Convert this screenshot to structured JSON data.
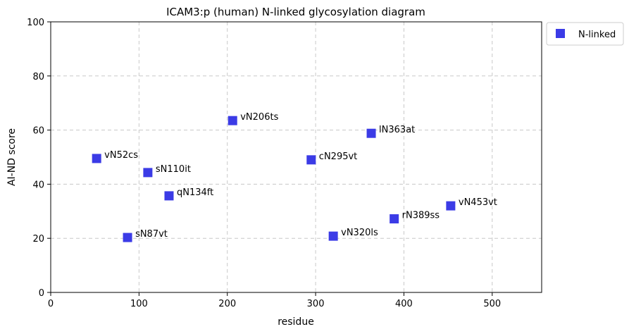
{
  "chart_data": {
    "type": "scatter",
    "title": "ICAM3:p (human) N-linked glycosylation diagram",
    "xlabel": "residue",
    "ylabel": "AI-ND score",
    "xlim": [
      0,
      556
    ],
    "ylim": [
      0,
      100
    ],
    "xticks": [
      0,
      100,
      200,
      300,
      400,
      500
    ],
    "yticks": [
      0,
      20,
      40,
      60,
      80,
      100
    ],
    "grid": true,
    "legend": {
      "position": "outside-top-right",
      "entries": [
        "N-linked"
      ]
    },
    "colors": {
      "marker": "#3b3be6",
      "grid": "#c8c8c8",
      "axis": "#000000"
    },
    "series": [
      {
        "name": "N-linked",
        "marker": "square",
        "points": [
          {
            "x": 52,
            "y": 49.5,
            "label": "vN52cs"
          },
          {
            "x": 87,
            "y": 20.3,
            "label": "sN87vt"
          },
          {
            "x": 110,
            "y": 44.3,
            "label": "sN110it"
          },
          {
            "x": 134,
            "y": 35.7,
            "label": "qN134ft"
          },
          {
            "x": 206,
            "y": 63.5,
            "label": "vN206ts"
          },
          {
            "x": 295,
            "y": 49.0,
            "label": "cN295vt"
          },
          {
            "x": 320,
            "y": 20.8,
            "label": "vN320ls"
          },
          {
            "x": 363,
            "y": 58.8,
            "label": "lN363at"
          },
          {
            "x": 389,
            "y": 27.2,
            "label": "rN389ss"
          },
          {
            "x": 453,
            "y": 32.0,
            "label": "vN453vt"
          }
        ]
      }
    ]
  }
}
